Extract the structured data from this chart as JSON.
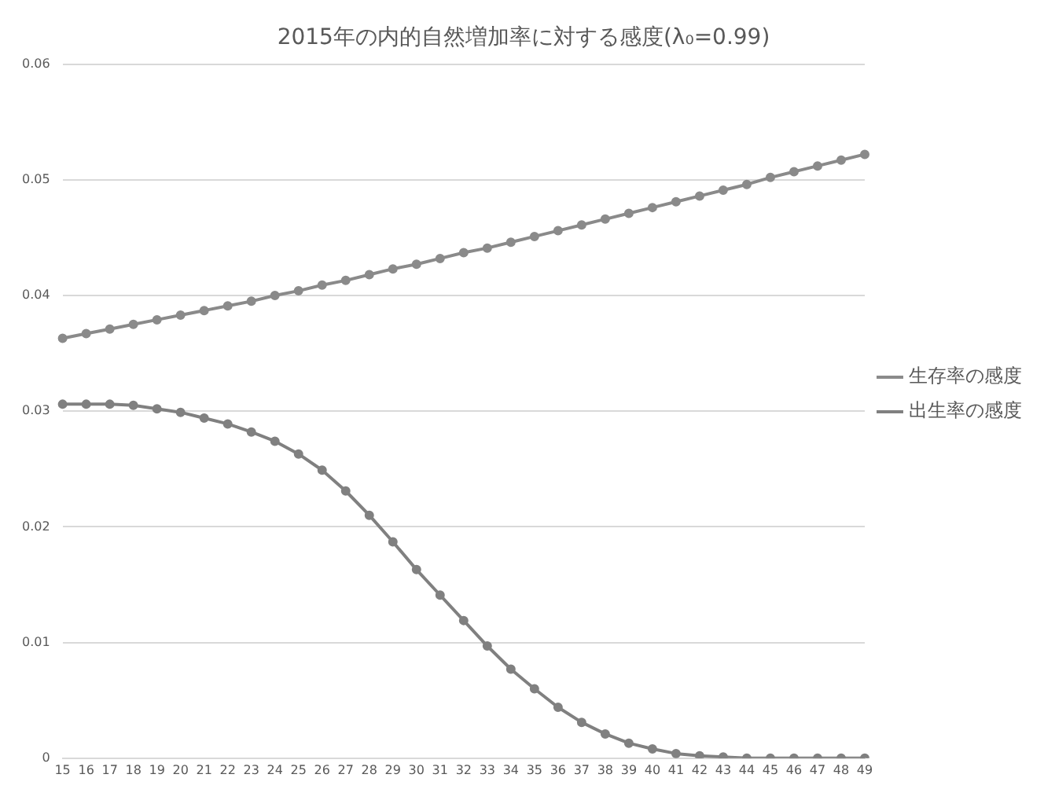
{
  "chart_data": {
    "type": "line",
    "title": "2015年の内的自然増加率に対する感度(λ₀=0.99)",
    "categories": [
      "15",
      "16",
      "17",
      "18",
      "19",
      "20",
      "21",
      "22",
      "23",
      "24",
      "25",
      "26",
      "27",
      "28",
      "29",
      "30",
      "31",
      "32",
      "33",
      "34",
      "35",
      "36",
      "37",
      "38",
      "39",
      "40",
      "41",
      "42",
      "43",
      "44",
      "45",
      "46",
      "47",
      "48",
      "49"
    ],
    "series": [
      {
        "name": "生存率の感度",
        "color": "#8a8a8a",
        "values": [
          0.0363,
          0.0367,
          0.0371,
          0.0375,
          0.0379,
          0.0383,
          0.0387,
          0.0391,
          0.0395,
          0.04,
          0.0404,
          0.0409,
          0.0413,
          0.0418,
          0.0423,
          0.0427,
          0.0432,
          0.0437,
          0.0441,
          0.0446,
          0.0451,
          0.0456,
          0.0461,
          0.0466,
          0.0471,
          0.0476,
          0.0481,
          0.0486,
          0.0491,
          0.0496,
          0.0502,
          0.0507,
          0.0512,
          0.0517,
          0.0522
        ]
      },
      {
        "name": "出生率の感度",
        "color": "#808080",
        "values": [
          0.0306,
          0.0306,
          0.0306,
          0.0305,
          0.0302,
          0.0299,
          0.0294,
          0.0289,
          0.0282,
          0.0274,
          0.0263,
          0.0249,
          0.0231,
          0.021,
          0.0187,
          0.0163,
          0.0141,
          0.0119,
          0.0097,
          0.0077,
          0.006,
          0.0044,
          0.0031,
          0.0021,
          0.0013,
          0.0008,
          0.0004,
          0.0002,
          0.0001,
          0,
          0,
          0,
          0,
          0,
          0
        ]
      }
    ],
    "ylim": [
      0,
      0.06
    ],
    "yticks": [
      0,
      0.01,
      0.02,
      0.03,
      0.04,
      0.05,
      0.06
    ],
    "grid": "y",
    "legend": "right",
    "marker": "circle",
    "line_style": "solid"
  }
}
